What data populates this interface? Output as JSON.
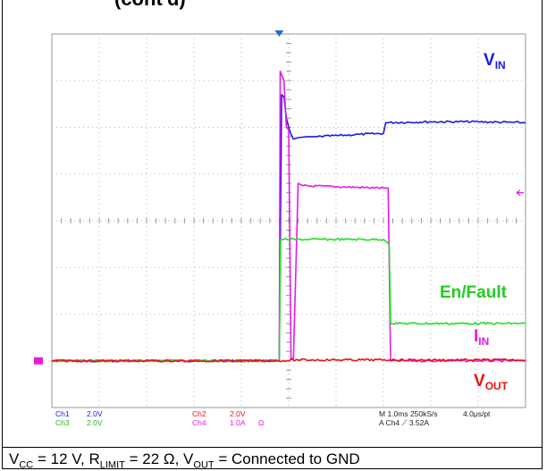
{
  "header_fragment": "(cont'd)",
  "chart_data": {
    "type": "line",
    "title": "",
    "xlabel": "",
    "ylabel": "",
    "x_unit": "ms",
    "grid": true,
    "xlim": [
      0,
      10
    ],
    "ylim": [
      -4,
      4
    ],
    "x_divisions": 10,
    "y_divisions": 8,
    "series": [
      {
        "name": "VIN",
        "channel": "Ch1",
        "color": "#1a1ae6",
        "x": [
          0,
          4.8,
          4.85,
          4.9,
          4.95,
          5.0,
          5.05,
          5.1,
          5.2,
          5.4,
          5.6,
          6.5,
          7.0,
          7.05,
          8.0,
          9.0,
          10.0
        ],
        "y": [
          -3.0,
          -3.0,
          2.7,
          2.65,
          2.2,
          2.0,
          1.85,
          1.75,
          1.78,
          1.8,
          1.8,
          1.85,
          1.87,
          2.1,
          2.12,
          2.12,
          2.1
        ]
      },
      {
        "name": "IIN",
        "channel": "Ch4",
        "color": "#e61ae6",
        "x": [
          0,
          4.8,
          4.82,
          4.9,
          4.95,
          5.0,
          5.05,
          5.1,
          5.2,
          5.3,
          7.0,
          7.1,
          7.15,
          10.0
        ],
        "y": [
          -3.0,
          -3.0,
          3.2,
          3.0,
          2.0,
          1.95,
          -2.95,
          -2.95,
          0.8,
          0.75,
          0.7,
          0.7,
          -3.0,
          -3.0
        ]
      },
      {
        "name": "En/Fault",
        "channel": "Ch3",
        "color": "#22dd22",
        "x": [
          0,
          4.8,
          4.83,
          7.0,
          7.12,
          7.15,
          10.0
        ],
        "y": [
          -3.0,
          -3.0,
          -0.4,
          -0.4,
          -0.5,
          -2.2,
          -2.2
        ]
      },
      {
        "name": "VOUT",
        "channel": "Ch2",
        "color": "#ee1111",
        "x": [
          0,
          4.8,
          5.2,
          10.0
        ],
        "y": [
          -3.0,
          -3.0,
          -2.98,
          -2.98
        ]
      }
    ],
    "trace_labels": {
      "vin": {
        "main": "V",
        "sub": "IN"
      },
      "iin": {
        "main": "I",
        "sub": "IN"
      },
      "enfault": {
        "main": "En/Fault"
      },
      "vout": {
        "main": "V",
        "sub": "OUT"
      }
    },
    "scope_readout": {
      "ch1": "Ch1",
      "ch1_scale": "2.0V",
      "ch3": "Ch3",
      "ch3_scale": "2.0V",
      "ch2": "Ch2",
      "ch2_scale": "2.0V",
      "ch4": "Ch4",
      "ch4_scale": "1.0A",
      "ohm": "Ω",
      "timebase": "M 1.0ms 250kS/s",
      "pt": "4.0μs/pt",
      "trigger": "A  Ch4  ⟋  3.52A"
    }
  },
  "caption": {
    "vcc_label": "V",
    "vcc_sub": "CC",
    "vcc_value": " = 12 V, ",
    "rlimit_label": "R",
    "rlimit_sub": "LIMIT",
    "rlimit_value": " = 22 Ω, ",
    "vout_label": "V",
    "vout_sub": "OUT",
    "vout_value": " = Connected to GND"
  }
}
